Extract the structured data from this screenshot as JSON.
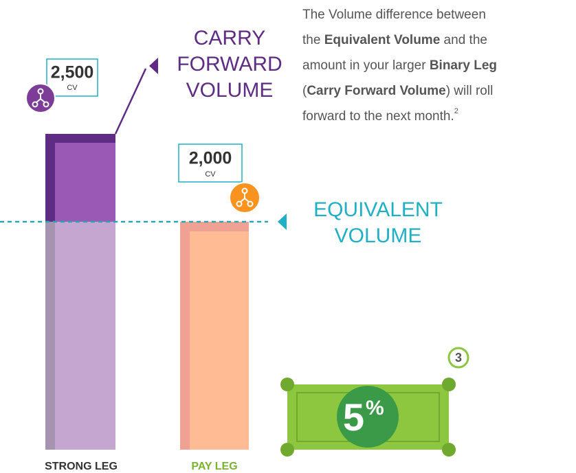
{
  "paragraph": {
    "lines": [
      [
        {
          "text": "The Volume difference between"
        }
      ],
      [
        {
          "text": "the "
        },
        {
          "text": "Equivalent Volume",
          "bold": true
        },
        {
          "text": " and the"
        }
      ],
      [
        {
          "text": "amount in your larger "
        },
        {
          "text": "Binary Leg",
          "bold": true
        }
      ],
      [
        {
          "text": "("
        },
        {
          "text": "Carry Forward Volume",
          "bold": true
        },
        {
          "text": ") will roll"
        }
      ],
      [
        {
          "text": "forward to the next month."
        },
        {
          "text": "2",
          "sup": true
        }
      ]
    ]
  },
  "carry_forward": {
    "lines": [
      "CARRY",
      "FORWARD",
      "VOLUME"
    ]
  },
  "equivalent": {
    "lines": [
      "EQUIVALENT",
      "VOLUME"
    ]
  },
  "strong_leg": {
    "value": "2,500",
    "unit": "CV",
    "label": "STRONG LEG"
  },
  "pay_leg": {
    "value": "2,000",
    "unit": "CV",
    "label": "PAY LEG"
  },
  "badge": "3",
  "bill": {
    "number": "5",
    "symbol": "%"
  }
}
